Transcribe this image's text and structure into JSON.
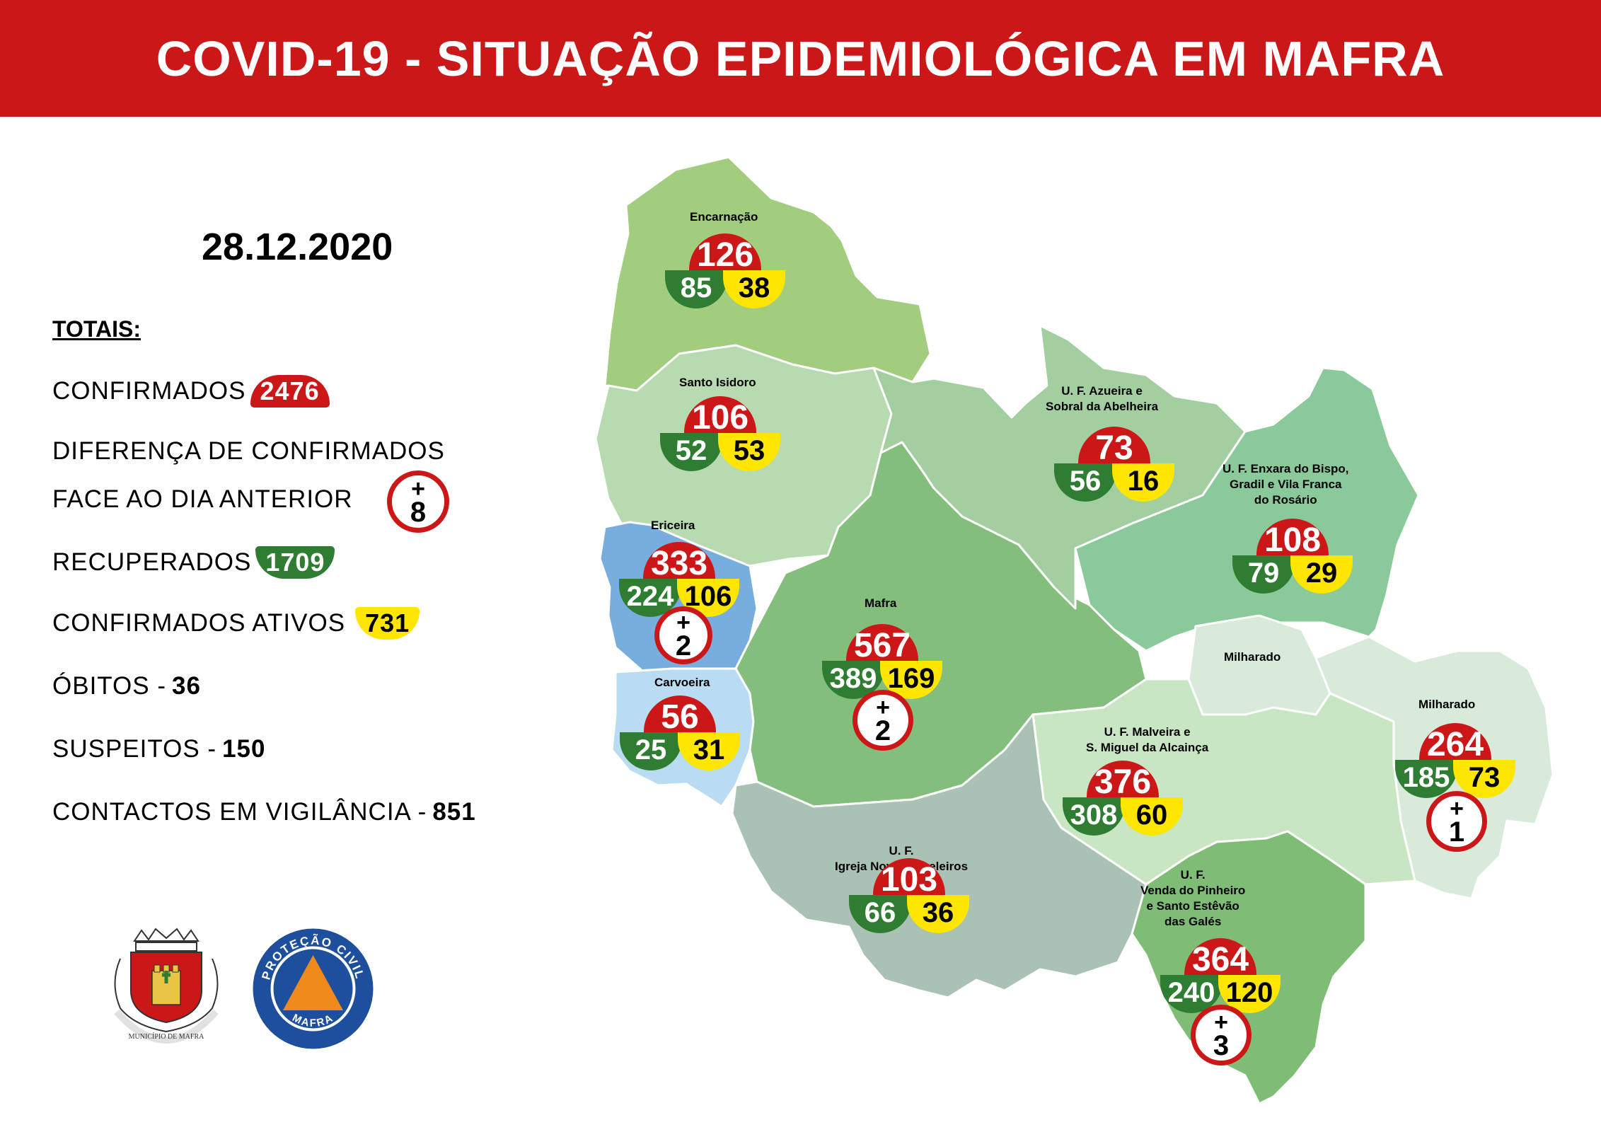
{
  "header": {
    "title": "COVID-19 - SITUAÇÃO EPIDEMIOLÓGICA EM MAFRA"
  },
  "date": "28.12.2020",
  "totals": {
    "heading": "TOTAIS:",
    "confirmed_label": "CONFIRMADOS",
    "confirmed_value": "2476",
    "diff_label_line1": "DIFERENÇA DE CONFIRMADOS",
    "diff_label_line2": "FACE AO DIA ANTERIOR",
    "diff_value": "8",
    "recovered_label": "RECUPERADOS",
    "recovered_value": "1709",
    "active_label": "CONFIRMADOS ATIVOS",
    "active_value": "731",
    "deaths_label": "ÓBITOS -",
    "deaths_value": "36",
    "suspects_label": "SUSPEITOS -",
    "suspects_value": "150",
    "contacts_label": "CONTACTOS EM VIGILÂNCIA -",
    "contacts_value": "851"
  },
  "plus_sign": "+",
  "regions": [
    {
      "name": "Encarnação",
      "confirmed": "126",
      "recovered": "85",
      "active": "38",
      "new": ""
    },
    {
      "name": "Santo Isidoro",
      "confirmed": "106",
      "recovered": "52",
      "active": "53",
      "new": ""
    },
    {
      "name": "Ericeira",
      "confirmed": "333",
      "recovered": "224",
      "active": "106",
      "new": "2"
    },
    {
      "name": "Carvoeira",
      "confirmed": "56",
      "recovered": "25",
      "active": "31",
      "new": ""
    },
    {
      "name": "Mafra",
      "confirmed": "567",
      "recovered": "389",
      "active": "169",
      "new": "2"
    },
    {
      "name_line1": "U. F. Azueira e",
      "name_line2": "Sobral da Abelheira",
      "confirmed": "73",
      "recovered": "56",
      "active": "16",
      "new": ""
    },
    {
      "name_line1": "U. F. Enxara do Bispo,",
      "name_line2": "Gradil e Vila Franca",
      "name_line3": "do Rosário",
      "confirmed": "108",
      "recovered": "79",
      "active": "29",
      "new": ""
    },
    {
      "name_line1": "U. F. Malveira e",
      "name_line2": "S. Miguel da Alcainça",
      "confirmed": "376",
      "recovered": "308",
      "active": "60",
      "new": ""
    },
    {
      "name_line1": "U. F.",
      "name_line2": "Igreja Nova e Cheleiros",
      "confirmed": "103",
      "recovered": "66",
      "active": "36",
      "new": ""
    },
    {
      "name_line1": "U. F.",
      "name_line2": "Venda do Pinheiro",
      "name_line3": "e Santo Estêvão",
      "name_line4": "das Galés",
      "confirmed": "364",
      "recovered": "240",
      "active": "120",
      "new": "3"
    },
    {
      "name": "Milharado",
      "confirmed": "264",
      "recovered": "185",
      "active": "73",
      "new": "1"
    }
  ],
  "milharado_enclave_label": "Milharado",
  "logos": {
    "municipio_text": "MUNICÍPIO DE MAFRA",
    "protecao_top": "PROTEÇÃO CIVIL",
    "protecao_bottom": "MAFRA"
  },
  "colors": {
    "banner": "#cc1719",
    "confirmed": "#cc1719",
    "recovered": "#2e7d32",
    "active": "#ffe600"
  }
}
